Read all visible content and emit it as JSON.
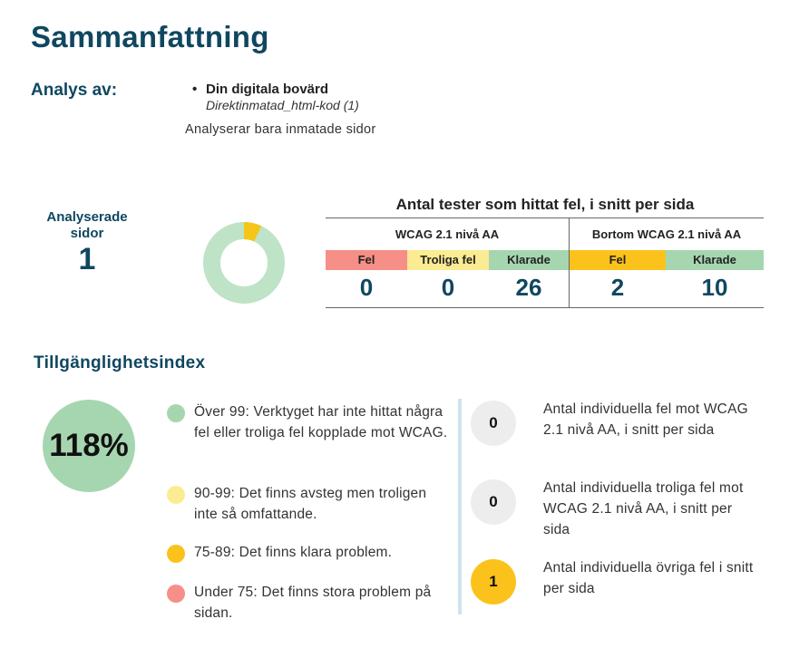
{
  "page": {
    "title": "Sammanfattning"
  },
  "analysis": {
    "label": "Analys av:",
    "site_name": "Din digitala bovärd",
    "site_sub": "Direktinmatad_html-kod (1)",
    "note": "Analyserar bara inmatade sidor"
  },
  "pages": {
    "label": "Analyserade sidor",
    "value": "1"
  },
  "donut": {
    "colors": {
      "main": "#bfe3c6",
      "accent": "#f5c518"
    },
    "accent_fraction": 0.07
  },
  "tests": {
    "title": "Antal tester som hittat fel, i snitt per sida",
    "group1": {
      "header": "WCAG 2.1 nivå AA",
      "cells": [
        {
          "label": "Fel",
          "value": "0",
          "color": "#f58f87"
        },
        {
          "label": "Troliga fel",
          "value": "0",
          "color": "#fbeb92"
        },
        {
          "label": "Klarade",
          "value": "26",
          "color": "#a6d6b0"
        }
      ]
    },
    "group2": {
      "header": "Bortom WCAG 2.1 nivå AA",
      "cells": [
        {
          "label": "Fel",
          "value": "2",
          "color": "#fbc21b"
        },
        {
          "label": "Klarade",
          "value": "10",
          "color": "#a6d6b0"
        }
      ]
    }
  },
  "index": {
    "title": "Tillgänglighetsindex",
    "value": "118%",
    "legend": [
      {
        "text": "Över 99: Verktyget har inte hittat några fel eller troliga fel kopplade mot WCAG.",
        "color": "#a6d6b0"
      },
      {
        "text": "90-99: Det finns avsteg men troligen inte så omfattande.",
        "color": "#fcec91"
      },
      {
        "text": "75-89: Det finns klara problem.",
        "color": "#fbc21b"
      },
      {
        "text": "Under 75: Det finns stora problem på sidan.",
        "color": "#f58f87"
      }
    ]
  },
  "counts": [
    {
      "value": "0",
      "text": "Antal individuella fel mot WCAG 2.1 nivå AA, i snitt per sida",
      "color": "#ededed"
    },
    {
      "value": "0",
      "text": "Antal individuella troliga fel mot WCAG 2.1 nivå AA, i snitt per sida",
      "color": "#ededed"
    },
    {
      "value": "1",
      "text": "Antal individuella övriga fel i snitt per sida",
      "color": "#fbc21b"
    }
  ]
}
